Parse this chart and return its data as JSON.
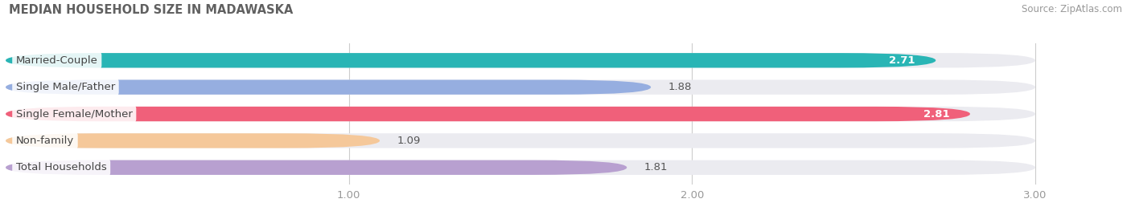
{
  "title": "MEDIAN HOUSEHOLD SIZE IN MADAWASKA",
  "source": "Source: ZipAtlas.com",
  "categories": [
    "Married-Couple",
    "Single Male/Father",
    "Single Female/Mother",
    "Non-family",
    "Total Households"
  ],
  "values": [
    2.71,
    1.88,
    2.81,
    1.09,
    1.81
  ],
  "bar_colors": [
    "#29b5b5",
    "#96aee0",
    "#f0607a",
    "#f5c89a",
    "#b8a0d0"
  ],
  "bar_bg_color": "#ebebf0",
  "xlim_data": [
    0.0,
    3.18
  ],
  "xmin": 0.0,
  "xmax": 3.0,
  "xticks": [
    1.0,
    2.0,
    3.0
  ],
  "label_fontsize": 9.5,
  "value_fontsize": 9.5,
  "title_fontsize": 10.5,
  "source_fontsize": 8.5,
  "fig_bg_color": "#ffffff",
  "bar_height": 0.55,
  "white_label_threshold": 2.4
}
